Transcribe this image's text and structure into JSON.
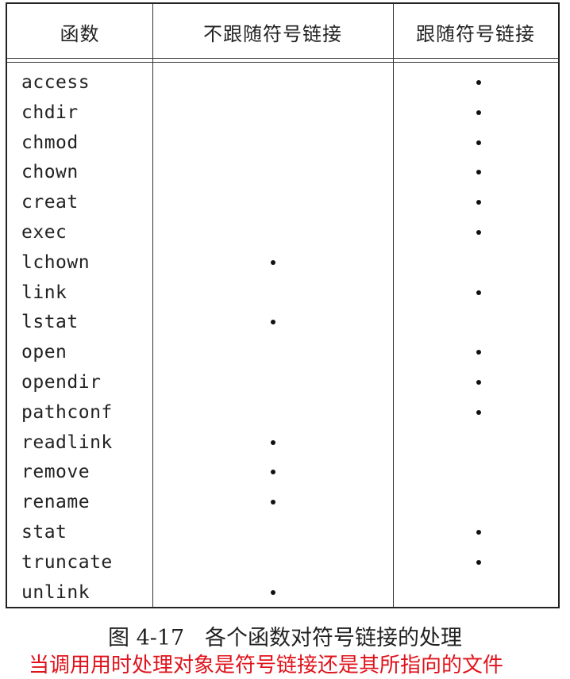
{
  "table": {
    "headers": {
      "function": "函数",
      "no_follow": "不跟随符号链接",
      "follow": "跟随符号链接"
    },
    "rows": [
      {
        "name": "access",
        "no_follow": false,
        "follow": true
      },
      {
        "name": "chdir",
        "no_follow": false,
        "follow": true
      },
      {
        "name": "chmod",
        "no_follow": false,
        "follow": true
      },
      {
        "name": "chown",
        "no_follow": false,
        "follow": true
      },
      {
        "name": "creat",
        "no_follow": false,
        "follow": true
      },
      {
        "name": "exec",
        "no_follow": false,
        "follow": true
      },
      {
        "name": "lchown",
        "no_follow": true,
        "follow": false
      },
      {
        "name": "link",
        "no_follow": false,
        "follow": true
      },
      {
        "name": "lstat",
        "no_follow": true,
        "follow": false
      },
      {
        "name": "open",
        "no_follow": false,
        "follow": true
      },
      {
        "name": "opendir",
        "no_follow": false,
        "follow": true
      },
      {
        "name": "pathconf",
        "no_follow": false,
        "follow": true
      },
      {
        "name": "readlink",
        "no_follow": true,
        "follow": false
      },
      {
        "name": "remove",
        "no_follow": true,
        "follow": false
      },
      {
        "name": "rename",
        "no_follow": true,
        "follow": false
      },
      {
        "name": "stat",
        "no_follow": false,
        "follow": true
      },
      {
        "name": "truncate",
        "no_follow": false,
        "follow": true
      },
      {
        "name": "unlink",
        "no_follow": true,
        "follow": false
      }
    ]
  },
  "caption": "图 4-17   各个函数对符号链接的处理",
  "note": "当调用用时处理对象是符号链接还是其所指向的文件",
  "colors": {
    "note": "#e0131b",
    "text": "#222222"
  }
}
